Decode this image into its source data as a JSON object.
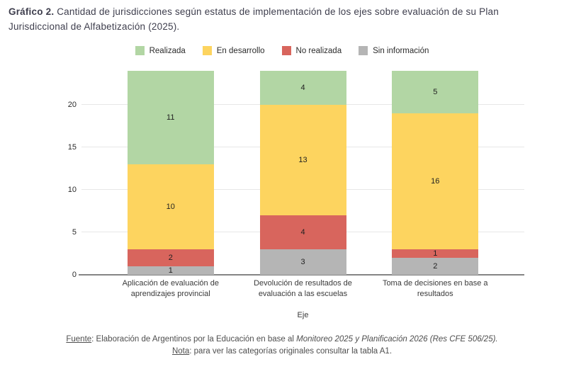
{
  "title": {
    "prefix": "Gráfico 2.",
    "text": " Cantidad de jurisdicciones según estatus de implementación de los ejes sobre evaluación de su Plan Jurisdiccional de Alfabetización (2025)."
  },
  "chart_data": {
    "type": "bar",
    "stacked": true,
    "title": "Gráfico 2. Cantidad de jurisdicciones según estatus de implementación de los ejes sobre evaluación de su Plan Jurisdiccional de Alfabetización (2025).",
    "categories": [
      "Aplicación de evaluación de aprendizajes provincial",
      "Devolución de resultados de evaluación a las escuelas",
      "Toma de decisiones en base a resultados"
    ],
    "series": [
      {
        "name": "Realizada",
        "color": "#b2d6a4",
        "values": [
          11,
          4,
          5
        ]
      },
      {
        "name": "En desarrollo",
        "color": "#fdd45f",
        "values": [
          10,
          13,
          16
        ]
      },
      {
        "name": "No realizada",
        "color": "#d8655d",
        "values": [
          2,
          4,
          1
        ]
      },
      {
        "name": "Sin información",
        "color": "#b5b5b5",
        "values": [
          1,
          3,
          2
        ]
      }
    ],
    "xlabel": "Eje",
    "ylabel": "",
    "ylim": [
      0,
      24
    ],
    "yticks": [
      0,
      5,
      10,
      15,
      20
    ],
    "grid": true,
    "legend_position": "top"
  },
  "footer": {
    "source_label": "Fuente",
    "source_text": ": Elaboración de Argentinos por la Educación en base al ",
    "source_italic": "Monitoreo 2025 y Planificación 2026 (Res CFE 506/25).",
    "note_label": "Nota",
    "note_text": ": para ver las categorías originales consultar la tabla A1."
  }
}
